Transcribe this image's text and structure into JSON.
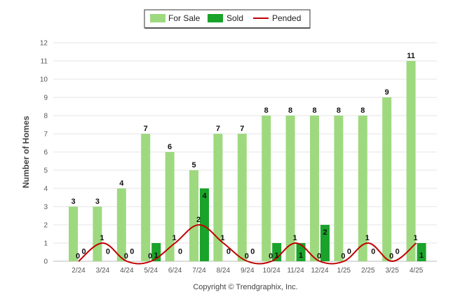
{
  "legend": {
    "for_sale": "For Sale",
    "sold": "Sold",
    "pended": "Pended"
  },
  "footer": "Copyright © Trendgraphix, Inc.",
  "colors": {
    "for_sale": "#9ed97f",
    "sold": "#1aa32a",
    "pended": "#c00000",
    "grid": "#e6e6e6"
  },
  "chart_data": {
    "type": "bar",
    "title": "",
    "xlabel": "",
    "ylabel": "Number of Homes",
    "ylim": [
      0,
      12
    ],
    "yticks": [
      0,
      1,
      2,
      3,
      4,
      5,
      6,
      7,
      8,
      9,
      10,
      11,
      12
    ],
    "grid": true,
    "legend_position": "top-center",
    "categories": [
      "2/24",
      "3/24",
      "4/24",
      "5/24",
      "6/24",
      "7/24",
      "8/24",
      "9/24",
      "10/24",
      "11/24",
      "12/24",
      "1/25",
      "2/25",
      "3/25",
      "4/25"
    ],
    "series": [
      {
        "name": "For Sale",
        "type": "bar",
        "values": [
          3,
          3,
          4,
          7,
          6,
          5,
          7,
          7,
          8,
          8,
          8,
          8,
          8,
          9,
          11
        ]
      },
      {
        "name": "Sold",
        "type": "bar",
        "values": [
          0,
          0,
          0,
          1,
          0,
          4,
          0,
          0,
          1,
          1,
          2,
          0,
          0,
          0,
          1
        ]
      },
      {
        "name": "Pended",
        "type": "line",
        "values": [
          0,
          1,
          0,
          0,
          1,
          2,
          1,
          0,
          0,
          1,
          0,
          0,
          1,
          0,
          1
        ]
      }
    ]
  }
}
